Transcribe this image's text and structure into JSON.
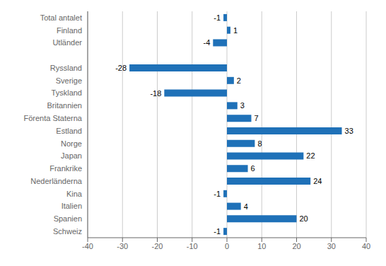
{
  "chart_data": {
    "type": "bar",
    "orientation": "horizontal",
    "categories": [
      "Total antalet",
      "Finland",
      "Utländer",
      null,
      "Ryssland",
      "Sverige",
      "Tyskland",
      "Britannien",
      "Förenta Staterna",
      "Estland",
      "Norge",
      "Japan",
      "Frankrike",
      "Nederländerna",
      "Kina",
      "Italien",
      "Spanien",
      "Schweiz"
    ],
    "values": [
      -1,
      1,
      -4,
      null,
      -28,
      2,
      -18,
      3,
      7,
      33,
      8,
      22,
      6,
      24,
      -1,
      4,
      20,
      -1
    ],
    "color": "#1F71B8",
    "xlim": [
      -40,
      40
    ],
    "xticks": [
      -40,
      -30,
      -20,
      -10,
      0,
      10,
      20,
      30,
      40
    ],
    "grid": true,
    "data_labels": true
  }
}
